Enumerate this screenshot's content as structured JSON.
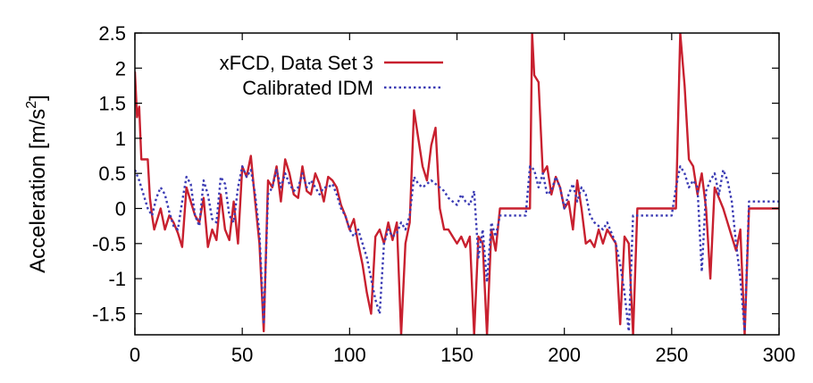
{
  "chart_data": {
    "type": "line",
    "title": "",
    "xlabel": "",
    "ylabel": "Acceleration [m/s",
    "ylabel_sup": "2",
    "ylabel_end": "]",
    "xlim": [
      0,
      300
    ],
    "ylim": [
      -1.8,
      2.5
    ],
    "xticks": [
      0,
      50,
      100,
      150,
      200,
      250,
      300
    ],
    "yticks": [
      -1.5,
      -1,
      -0.5,
      0,
      0.5,
      1,
      1.5,
      2,
      2.5
    ],
    "xtick_labels": [
      "0",
      "50",
      "100",
      "150",
      "200",
      "250",
      "300"
    ],
    "ytick_labels": [
      "-1.5",
      "-1",
      "-0.5",
      "0",
      "0.5",
      "1",
      "1.5",
      "2",
      "2.5"
    ],
    "grid": false,
    "legend_position": "top-left",
    "series": [
      {
        "name": "xFCD, Data Set 3",
        "color": "#c8202f",
        "style": "solid",
        "x": [
          0,
          1,
          2,
          3,
          4,
          5,
          6,
          7,
          8,
          9,
          10,
          12,
          14,
          16,
          18,
          20,
          22,
          24,
          26,
          28,
          30,
          32,
          34,
          36,
          38,
          40,
          42,
          44,
          46,
          48,
          50,
          52,
          54,
          56,
          58,
          60,
          62,
          64,
          66,
          68,
          70,
          72,
          74,
          76,
          78,
          80,
          82,
          84,
          86,
          88,
          90,
          92,
          94,
          96,
          98,
          100,
          102,
          104,
          106,
          108,
          110,
          112,
          114,
          116,
          118,
          120,
          122,
          124,
          126,
          128,
          130,
          132,
          134,
          136,
          138,
          140,
          142,
          144,
          146,
          148,
          150,
          152,
          154,
          156,
          158,
          160,
          162,
          164,
          166,
          168,
          170,
          175,
          180,
          182,
          184,
          185,
          186,
          188,
          190,
          192,
          194,
          196,
          198,
          200,
          202,
          204,
          206,
          208,
          210,
          212,
          214,
          216,
          218,
          220,
          222,
          224,
          226,
          228,
          230,
          232,
          234,
          240,
          245,
          250,
          252,
          254,
          256,
          258,
          260,
          262,
          264,
          266,
          268,
          270,
          272,
          274,
          276,
          278,
          280,
          282,
          284,
          286,
          288,
          290,
          295,
          300
        ],
        "y": [
          1.95,
          1.3,
          1.45,
          0.7,
          0.7,
          0.7,
          0.7,
          0.15,
          -0.1,
          -0.3,
          -0.2,
          0.0,
          -0.3,
          -0.1,
          -0.2,
          -0.35,
          -0.55,
          0.3,
          0.1,
          -0.1,
          -0.2,
          0.15,
          -0.55,
          -0.3,
          -0.45,
          0.2,
          -0.3,
          -0.45,
          0.1,
          -0.5,
          0.6,
          0.45,
          0.75,
          0.1,
          -0.5,
          -1.75,
          0.4,
          0.3,
          0.6,
          0.1,
          0.7,
          0.5,
          0.2,
          0.15,
          0.6,
          0.25,
          0.2,
          0.5,
          0.35,
          0.1,
          0.45,
          0.4,
          0.3,
          0.05,
          -0.1,
          -0.3,
          -0.15,
          -0.5,
          -0.8,
          -1.2,
          -1.5,
          -0.4,
          -0.3,
          -0.5,
          -0.2,
          -0.45,
          -0.2,
          -1.8,
          -0.5,
          -0.2,
          1.4,
          1.0,
          0.6,
          0.4,
          0.9,
          1.15,
          0.0,
          -0.3,
          -0.3,
          -0.4,
          -0.5,
          -0.4,
          -0.55,
          -0.4,
          -1.8,
          -0.4,
          -0.5,
          -1.8,
          -0.3,
          -0.6,
          0.0,
          0.0,
          0.0,
          0.0,
          0.0,
          2.5,
          1.9,
          1.8,
          0.5,
          0.6,
          0.2,
          0.45,
          0.3,
          0.0,
          0.1,
          -0.3,
          0.4,
          0.0,
          -0.5,
          -0.45,
          -0.55,
          -0.3,
          -0.5,
          -0.3,
          -0.4,
          -0.5,
          -1.65,
          -0.4,
          -0.5,
          -1.8,
          0.0,
          0.0,
          0.0,
          0.0,
          0.0,
          2.5,
          1.75,
          0.7,
          0.6,
          0.2,
          0.5,
          0.0,
          -1.0,
          0.3,
          0.15,
          0.0,
          -0.2,
          -0.4,
          -0.6,
          -0.3,
          -1.8,
          0.0,
          0.0,
          0.0,
          0.0,
          0.0
        ]
      },
      {
        "name": "Calibrated IDM",
        "color": "#3c3cb4",
        "style": "dotted",
        "x": [
          0,
          2,
          4,
          6,
          8,
          10,
          12,
          14,
          16,
          18,
          20,
          22,
          24,
          26,
          28,
          30,
          32,
          34,
          36,
          38,
          40,
          42,
          44,
          46,
          48,
          50,
          52,
          54,
          56,
          58,
          60,
          62,
          64,
          66,
          68,
          70,
          72,
          74,
          76,
          78,
          80,
          82,
          84,
          86,
          88,
          90,
          92,
          94,
          96,
          98,
          100,
          102,
          104,
          106,
          108,
          110,
          112,
          114,
          116,
          118,
          120,
          122,
          124,
          126,
          128,
          130,
          132,
          134,
          136,
          138,
          140,
          142,
          144,
          146,
          148,
          150,
          152,
          154,
          156,
          158,
          160,
          162,
          164,
          166,
          168,
          170,
          175,
          180,
          182,
          184,
          186,
          188,
          190,
          192,
          194,
          196,
          198,
          200,
          202,
          204,
          206,
          208,
          210,
          212,
          214,
          216,
          218,
          220,
          222,
          224,
          226,
          228,
          230,
          232,
          234,
          240,
          245,
          250,
          252,
          254,
          256,
          258,
          260,
          262,
          264,
          266,
          268,
          270,
          272,
          274,
          276,
          278,
          280,
          282,
          284,
          286,
          288,
          290,
          295,
          300
        ],
        "y": [
          0.55,
          0.4,
          0.2,
          0.0,
          -0.1,
          0.15,
          0.3,
          0.2,
          -0.05,
          -0.25,
          -0.3,
          0.1,
          0.45,
          0.35,
          -0.1,
          -0.25,
          0.4,
          0.2,
          -0.15,
          -0.2,
          0.45,
          0.35,
          -0.1,
          -0.2,
          0.3,
          0.6,
          0.45,
          0.55,
          0.2,
          -0.35,
          -1.65,
          0.2,
          0.3,
          0.55,
          0.3,
          0.5,
          0.35,
          0.25,
          0.3,
          0.5,
          0.3,
          0.4,
          0.3,
          0.2,
          0.3,
          0.3,
          0.35,
          0.2,
          0.0,
          -0.1,
          -0.3,
          -0.4,
          -0.3,
          -0.5,
          -0.7,
          -1.0,
          -1.3,
          -1.5,
          -0.5,
          -0.3,
          -0.4,
          -0.35,
          -0.2,
          -0.3,
          -0.1,
          0.45,
          0.35,
          0.3,
          0.35,
          0.4,
          0.35,
          0.3,
          0.25,
          0.15,
          0.1,
          0.05,
          0.2,
          0.1,
          0.05,
          0.25,
          -0.7,
          -0.3,
          -1.05,
          -0.2,
          -0.4,
          -0.1,
          -0.1,
          -0.1,
          -0.1,
          0.6,
          0.55,
          0.3,
          0.5,
          0.2,
          0.25,
          0.45,
          0.3,
          0.0,
          0.2,
          0.35,
          0.1,
          0.3,
          0.2,
          -0.1,
          -0.2,
          -0.25,
          -0.3,
          -0.2,
          -0.35,
          -0.5,
          -0.8,
          -1.2,
          -1.75,
          -0.1,
          -0.1,
          -0.1,
          -0.1,
          -0.1,
          0.3,
          0.6,
          0.5,
          0.3,
          0.4,
          0.3,
          -0.9,
          0.25,
          0.4,
          0.5,
          0.2,
          0.55,
          0.4,
          0.1,
          -0.5,
          -1.0,
          -1.75,
          0.1,
          0.1,
          0.1,
          0.1,
          0.1
        ]
      }
    ]
  }
}
